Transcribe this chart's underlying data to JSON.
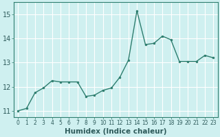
{
  "x": [
    0,
    1,
    2,
    3,
    4,
    5,
    6,
    7,
    8,
    9,
    10,
    11,
    12,
    13,
    14,
    15,
    16,
    17,
    18,
    19,
    20,
    21,
    22,
    23
  ],
  "y": [
    11.0,
    11.1,
    11.75,
    11.95,
    12.25,
    12.2,
    12.2,
    12.2,
    11.6,
    11.65,
    11.85,
    11.95,
    12.4,
    13.1,
    15.15,
    13.75,
    13.8,
    14.1,
    13.95,
    13.05,
    13.05,
    13.05,
    13.3,
    13.2
  ],
  "xlabel": "Humidex (Indice chaleur)",
  "xlim": [
    -0.5,
    23.5
  ],
  "ylim": [
    10.75,
    15.5
  ],
  "yticks": [
    11,
    12,
    13,
    14,
    15
  ],
  "xticks": [
    0,
    1,
    2,
    3,
    4,
    5,
    6,
    7,
    8,
    9,
    10,
    11,
    12,
    13,
    14,
    15,
    16,
    17,
    18,
    19,
    20,
    21,
    22,
    23
  ],
  "line_color": "#2d7d6e",
  "marker": "o",
  "marker_size": 2.0,
  "bg_color": "#cff0f0",
  "grid_color": "#ffffff",
  "line_width": 1.0,
  "xlabel_fontsize": 7.5,
  "ytick_fontsize": 7,
  "xtick_fontsize": 5.5
}
